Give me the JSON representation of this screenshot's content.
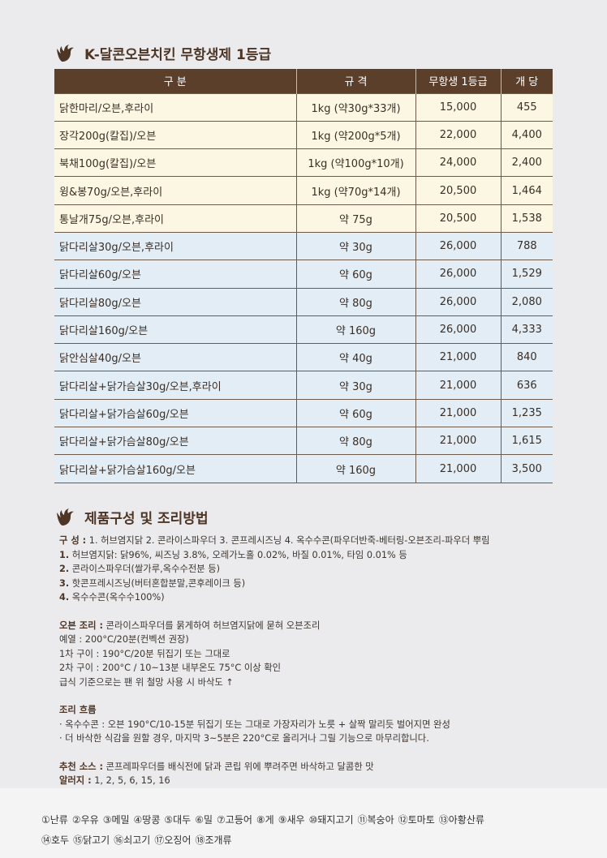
{
  "section1": {
    "title": "K-달콘오븐치킨 무항생제 1등급",
    "icon": "rooster-icon"
  },
  "table": {
    "headers": [
      "구 분",
      "규 격",
      "무항생 1등급",
      "개 당"
    ],
    "rows": [
      [
        "닭한마리/오븐,후라이",
        "1kg (약30g*33개)",
        "15,000",
        "455"
      ],
      [
        "장각200g(칼집)/오븐",
        "1kg (약200g*5개)",
        "22,000",
        "4,400"
      ],
      [
        "북채100g(칼집)/오븐",
        "1kg (약100g*10개)",
        "24,000",
        "2,400"
      ],
      [
        "윙&봉70g/오븐,후라이",
        "1kg (약70g*14개)",
        "20,500",
        "1,464"
      ],
      [
        "통날개75g/오븐,후라이",
        "약 75g",
        "20,500",
        "1,538"
      ],
      [
        "닭다리살30g/오븐,후라이",
        "약 30g",
        "26,000",
        "788"
      ],
      [
        "닭다리살60g/오븐",
        "약 60g",
        "26,000",
        "1,529"
      ],
      [
        "닭다리살80g/오븐",
        "약 80g",
        "26,000",
        "2,080"
      ],
      [
        "닭다리살160g/오븐",
        "약 160g",
        "26,000",
        "4,333"
      ],
      [
        "닭안심살40g/오븐",
        "약 40g",
        "21,000",
        "840"
      ],
      [
        "닭다리살+닭가슴살30g/오븐,후라이",
        "약 30g",
        "21,000",
        "636"
      ],
      [
        "닭다리살+닭가슴살60g/오븐",
        "약 60g",
        "21,000",
        "1,235"
      ],
      [
        "닭다리살+닭가슴살80g/오븐",
        "약 80g",
        "21,000",
        "1,615"
      ],
      [
        "닭다리살+닭가슴살160g/오븐",
        "약 160g",
        "21,000",
        "3,500"
      ]
    ],
    "colors": {
      "header": "#5b3f2b",
      "cream": "#fcf7e2",
      "blue": "#e2edf5"
    }
  },
  "section2": {
    "title": "제품구성 및 조리방법",
    "icon": "rooster-icon"
  },
  "info": {
    "composition_label": "구 성 :",
    "composition": " 1. 허브염지닭 2. 콘라이스파우더 3. 콘프레시즈닝 4. 옥수수콘(파우더반죽-베터링-오븐조리-파우더 뿌림",
    "items": [
      {
        "num": "1.",
        "text": " 허브염지닭: 닭96%, 씨즈닝 3.8%, 오레가노홀 0.02%, 바질 0.01%, 타임 0.01% 등"
      },
      {
        "num": "2.",
        "text": " 콘라이스파우더(쌀가루,옥수수전분 등)"
      },
      {
        "num": "3.",
        "text": " 핫콘프레시즈닝(버터혼합분말,콘후레이크 등)"
      },
      {
        "num": "4.",
        "text": " 옥수수콘(옥수수100%)"
      }
    ],
    "oven_label": "오븐 조리 :",
    "oven": " 콘라이스파우더를 묽게하여 허브염지닭에 묻혀 오븐조리",
    "oven_lines": [
      "예열 : 200°C/20분(컨벡션 권장)",
      "1차 구이 : 190°C/20분 뒤집기 또는 그대로",
      "2차 구이 : 200°C / 10~13분 내부온도 75°C 이상 확인",
      "급식 기준으로는 팬 위 철망 사용 시 바삭도 ↑"
    ],
    "flow_label": "조리 흐름",
    "flow_lines": [
      "· 옥수수콘 : 오븐 190°C/10-15분 뒤집기 또는 그대로 가장자리가 노릇 + 살짝 말리듯 벌어지면 완성",
      "· 더 바삭한 식감을 원할 경우, 마지막 3~5분은 220°C로 올리거나 그릴 기능으로 마무리합니다."
    ],
    "sauce_label": "추천 소스 :",
    "sauce": " 콘프레파우더를 배식전에 닭과 콘립 위에 뿌려주면 바삭하고 달콤한 맛",
    "allergy_label": "알러지 :",
    "allergy": " 1, 2, 5, 6, 15, 16"
  },
  "allergens": [
    "①난류",
    "②우유",
    "③메밀",
    "④땅콩",
    "⑤대두",
    "⑥밀",
    "⑦고등어",
    "⑧게",
    "⑨새우",
    "⑩돼지고기",
    "⑪복숭아",
    "⑫토마토",
    "⑬아황산류",
    "⑭호두",
    "⑮닭고기",
    "⑯쇠고기",
    "⑰오징어",
    "⑱조개류"
  ]
}
